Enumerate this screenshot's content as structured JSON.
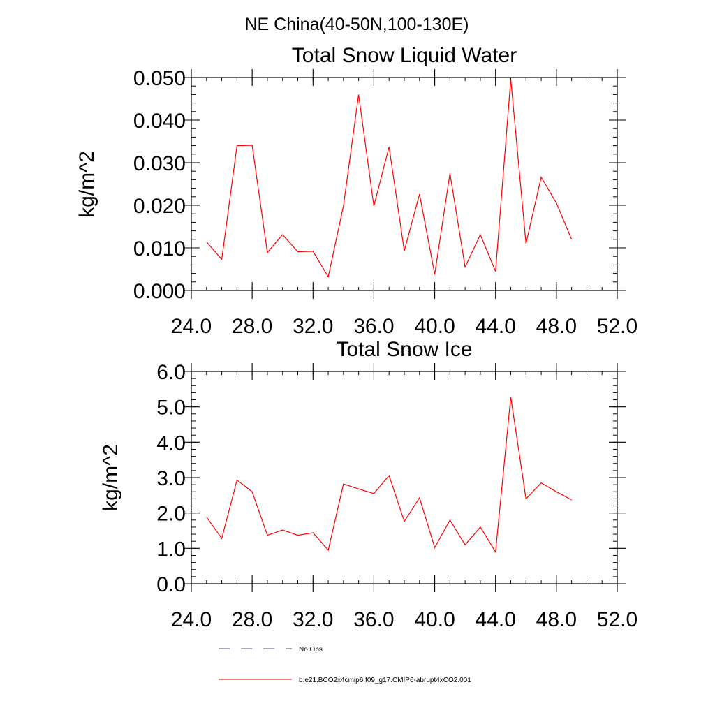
{
  "suptitle": "NE China(40-50N,100-130E)",
  "chart_data": [
    {
      "type": "line",
      "title": "Total Snow Liquid Water",
      "xlabel": "",
      "ylabel": "kg/m^2",
      "xlim": [
        24,
        52
      ],
      "ylim": [
        0,
        0.05
      ],
      "xticks": [
        24,
        28,
        32,
        36,
        40,
        44,
        48,
        52
      ],
      "xtick_labels": [
        "24.0",
        "28.0",
        "32.0",
        "36.0",
        "40.0",
        "44.0",
        "48.0",
        "52.0"
      ],
      "yticks": [
        0,
        0.01,
        0.02,
        0.03,
        0.04,
        0.05
      ],
      "ytick_labels": [
        "0.000",
        "0.010",
        "0.020",
        "0.030",
        "0.040",
        "0.050"
      ],
      "grid": false,
      "series": [
        {
          "name": "b.e21.BCO2x4cmip6.f09_g17.CMIP6-abrupt4xCO2.001",
          "color": "#ff0000",
          "x": [
            25,
            26,
            27,
            28,
            29,
            30,
            31,
            32,
            33,
            34,
            35,
            36,
            37,
            38,
            39,
            40,
            41,
            42,
            43,
            44,
            45,
            46,
            47,
            48,
            49
          ],
          "y": [
            0.0114,
            0.0073,
            0.034,
            0.0341,
            0.0089,
            0.0131,
            0.0091,
            0.0092,
            0.0032,
            0.0199,
            0.046,
            0.0198,
            0.0337,
            0.0093,
            0.0226,
            0.0038,
            0.0275,
            0.0055,
            0.0131,
            0.0045,
            0.0496,
            0.011,
            0.0266,
            0.0205,
            0.012
          ]
        }
      ]
    },
    {
      "type": "line",
      "title": "Total Snow Ice",
      "xlabel": "",
      "ylabel": "kg/m^2",
      "xlim": [
        24,
        52
      ],
      "ylim": [
        0,
        6
      ],
      "xticks": [
        24,
        28,
        32,
        36,
        40,
        44,
        48,
        52
      ],
      "xtick_labels": [
        "24.0",
        "28.0",
        "32.0",
        "36.0",
        "40.0",
        "44.0",
        "48.0",
        "52.0"
      ],
      "yticks": [
        0,
        1,
        2,
        3,
        4,
        5,
        6
      ],
      "ytick_labels": [
        "0.0",
        "1.0",
        "2.0",
        "3.0",
        "4.0",
        "5.0",
        "6.0"
      ],
      "grid": false,
      "series": [
        {
          "name": "b.e21.BCO2x4cmip6.f09_g17.CMIP6-abrupt4xCO2.001",
          "color": "#ff0000",
          "x": [
            25,
            26,
            27,
            28,
            29,
            30,
            31,
            32,
            33,
            34,
            35,
            36,
            37,
            38,
            39,
            40,
            41,
            42,
            43,
            44,
            45,
            46,
            47,
            48,
            49
          ],
          "y": [
            1.88,
            1.28,
            2.93,
            2.6,
            1.37,
            1.52,
            1.37,
            1.44,
            0.95,
            2.82,
            2.68,
            2.55,
            3.06,
            1.76,
            2.43,
            1.02,
            1.8,
            1.1,
            1.6,
            0.9,
            5.28,
            2.4,
            2.85,
            2.6,
            2.37
          ]
        }
      ]
    }
  ],
  "legend": {
    "placement": "bottom",
    "entries": [
      {
        "label": "No Obs",
        "color": "#4a5a8a",
        "style": "dashed"
      },
      {
        "label": "b.e21.BCO2x4cmip6.f09_g17.CMIP6-abrupt4xCO2.001",
        "color": "#ff0000",
        "style": "solid"
      }
    ]
  }
}
